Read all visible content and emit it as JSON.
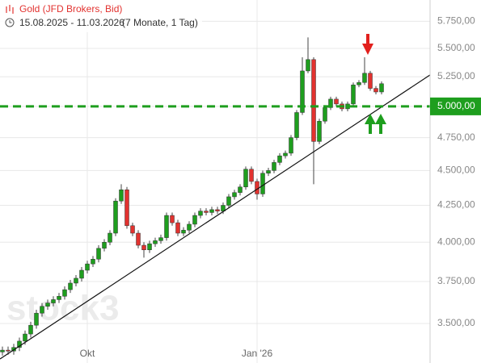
{
  "chart_data": {
    "type": "candlestick",
    "title": "Gold (JFD Brokers, Bid)",
    "subtitle": "15.08.2025 - 11.03.2026",
    "period": "(7 Monate, 1 Tag)",
    "watermark": "stock3",
    "log_scale": true,
    "grid": true,
    "up_color": "#1e9e1e",
    "down_color": "#e2322f",
    "ylim": [
      3280,
      5955
    ],
    "yticks": [
      {
        "value": 3500,
        "label": "3.500,00"
      },
      {
        "value": 3750,
        "label": "3.750,00"
      },
      {
        "value": 4000,
        "label": "4.000,00"
      },
      {
        "value": 4250,
        "label": "4.250,00"
      },
      {
        "value": 4500,
        "label": "4.500,00"
      },
      {
        "value": 4750,
        "label": "4.750,00"
      },
      {
        "value": 5000,
        "label": "5.000,00"
      },
      {
        "value": 5250,
        "label": "5.250,00"
      },
      {
        "value": 5500,
        "label": "5.500,00"
      },
      {
        "value": 5750,
        "label": "5.750,00"
      }
    ],
    "categories": [
      null,
      null,
      null,
      null,
      null,
      null,
      null,
      null,
      null,
      null,
      null,
      null,
      null,
      null,
      null,
      "Okt",
      null,
      null,
      null,
      null,
      null,
      null,
      null,
      null,
      null,
      null,
      null,
      null,
      null,
      null,
      null,
      null,
      null,
      null,
      null,
      null,
      null,
      null,
      null,
      null,
      null,
      null,
      null,
      null,
      null,
      "Jan '26",
      null,
      null,
      null,
      null,
      null,
      null,
      null,
      null,
      null,
      null,
      null,
      null,
      null,
      null,
      null,
      null,
      null,
      null,
      null,
      null,
      null,
      null
    ],
    "open": [
      3340,
      3350,
      3345,
      3365,
      3400,
      3440,
      3490,
      3560,
      3600,
      3620,
      3640,
      3660,
      3700,
      3740,
      3770,
      3820,
      3860,
      3890,
      3960,
      4000,
      4060,
      4280,
      4360,
      4110,
      4060,
      3980,
      3950,
      3990,
      4010,
      4030,
      4180,
      4130,
      4060,
      4080,
      4120,
      4180,
      4210,
      4200,
      4220,
      4210,
      4250,
      4310,
      4340,
      4380,
      4510,
      4420,
      4330,
      4480,
      4500,
      4560,
      4610,
      4630,
      4750,
      4950,
      5300,
      5400,
      4720,
      4880,
      4990,
      5060,
      5020,
      4980,
      5020,
      5180,
      5200,
      5280,
      5150,
      5120
    ],
    "high": [
      3370,
      3370,
      3385,
      3420,
      3460,
      3510,
      3580,
      3620,
      3640,
      3660,
      3680,
      3720,
      3760,
      3790,
      3840,
      3880,
      3910,
      3980,
      4020,
      4080,
      4300,
      4400,
      4380,
      4130,
      4080,
      4000,
      4010,
      4030,
      4050,
      4200,
      4200,
      4150,
      4100,
      4140,
      4200,
      4230,
      4230,
      4240,
      4240,
      4270,
      4330,
      4360,
      4400,
      4530,
      4530,
      4440,
      4500,
      4520,
      4580,
      4630,
      4650,
      4770,
      4970,
      5420,
      5600,
      5420,
      4900,
      5010,
      5080,
      5080,
      5040,
      5040,
      5200,
      5220,
      5420,
      5300,
      5170,
      5210
    ],
    "low": [
      3320,
      3325,
      3325,
      3345,
      3380,
      3420,
      3470,
      3540,
      3580,
      3600,
      3620,
      3640,
      3680,
      3720,
      3750,
      3800,
      3840,
      3870,
      3940,
      3980,
      4040,
      4260,
      4090,
      4040,
      3960,
      3900,
      3930,
      3970,
      3990,
      4010,
      4110,
      4040,
      4040,
      4060,
      4100,
      4160,
      4180,
      4180,
      4190,
      4190,
      4230,
      4290,
      4320,
      4360,
      4400,
      4290,
      4310,
      4460,
      4480,
      4540,
      4590,
      4610,
      4730,
      4930,
      5280,
      4400,
      4700,
      4860,
      4970,
      5000,
      4960,
      4960,
      5000,
      5160,
      5180,
      5130,
      5100,
      5100
    ],
    "close": [
      3350,
      3345,
      3365,
      3400,
      3440,
      3490,
      3560,
      3600,
      3620,
      3640,
      3660,
      3700,
      3740,
      3770,
      3820,
      3860,
      3890,
      3960,
      4000,
      4060,
      4280,
      4360,
      4110,
      4060,
      3980,
      3950,
      3990,
      4010,
      4030,
      4180,
      4130,
      4060,
      4080,
      4120,
      4180,
      4210,
      4200,
      4220,
      4210,
      4250,
      4310,
      4340,
      4380,
      4510,
      4420,
      4330,
      4480,
      4500,
      4560,
      4610,
      4630,
      4750,
      4950,
      5300,
      5400,
      4720,
      4880,
      4990,
      5060,
      5020,
      4980,
      5020,
      5180,
      5200,
      5280,
      5150,
      5120,
      5190
    ],
    "horizontal_line": {
      "value": 5000,
      "label": "5.000,00",
      "color": "#1e9e1e"
    },
    "trendline": {
      "start": 3302,
      "end": 5265
    }
  }
}
